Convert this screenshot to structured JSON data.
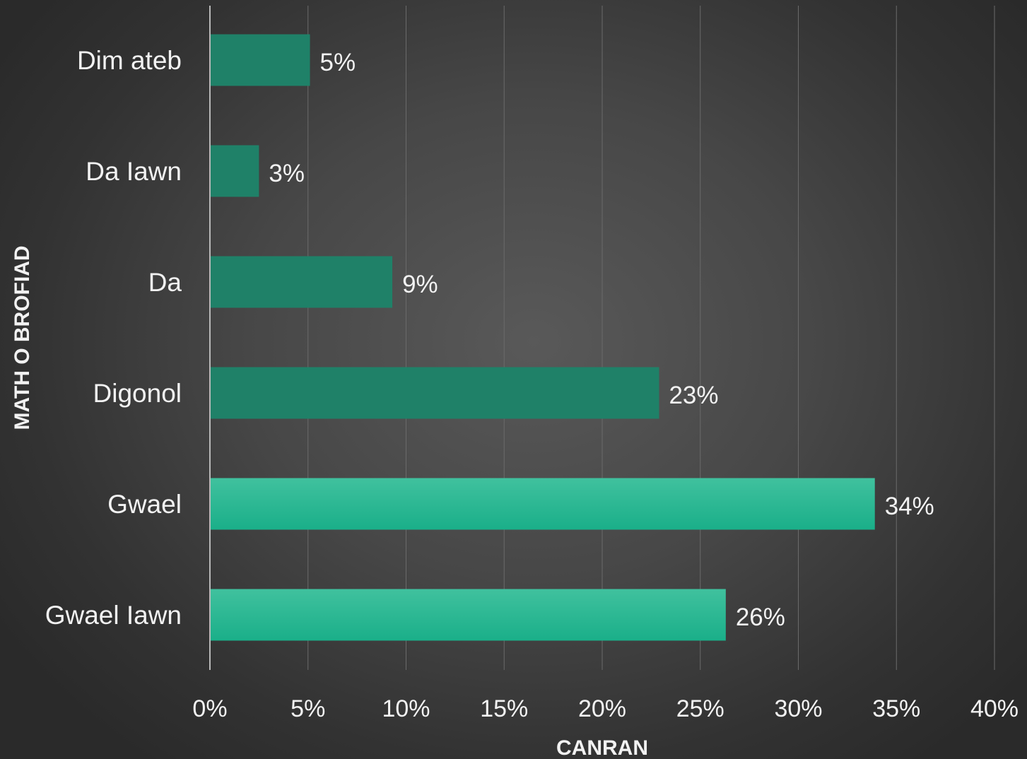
{
  "chart_data": {
    "type": "bar",
    "orientation": "horizontal",
    "categories": [
      "Dim ateb",
      "Da Iawn",
      "Da",
      "Digonol",
      "Gwael",
      "Gwael Iawn"
    ],
    "values": [
      5.1,
      2.5,
      9.3,
      22.9,
      33.9,
      26.3
    ],
    "data_labels": [
      "5%",
      "3%",
      "9%",
      "23%",
      "34%",
      "26%"
    ],
    "highlight": [
      false,
      false,
      false,
      false,
      true,
      true
    ],
    "xlabel": "CANRAN",
    "ylabel": "MATH O BROFIAD",
    "xlim": [
      0,
      40
    ],
    "xticks": [
      0,
      5,
      10,
      15,
      20,
      25,
      30,
      35,
      40
    ],
    "xtick_labels": [
      "0%",
      "5%",
      "10%",
      "15%",
      "20%",
      "25%",
      "30%",
      "35%",
      "40%"
    ],
    "grid": true,
    "legend": "none",
    "colors": {
      "bar": "#1f8168",
      "bar_highlight": "#1aaf89",
      "highlight_top": "#40c19e"
    }
  }
}
